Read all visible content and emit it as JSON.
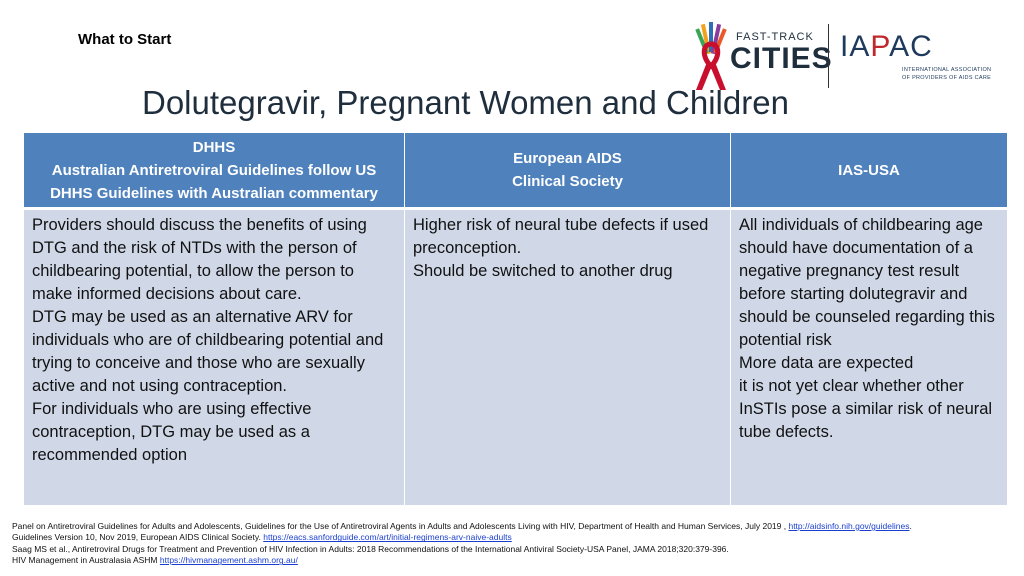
{
  "header": {
    "section_label": "What to Start",
    "title": "Dolutegravir, Pregnant Women and Children"
  },
  "logos": {
    "ftc_line1": "FAST-TRACK",
    "ftc_line2": "CITIES",
    "iapac_prefix": "IA",
    "iapac_mid": "P",
    "iapac_suffix": "AC",
    "iapac_sub1": "INTERNATIONAL ASSOCIATION",
    "iapac_sub2": "OF PROVIDERS OF AIDS CARE"
  },
  "table": {
    "headers": [
      {
        "line1": "DHHS",
        "line2": "Australian Antiretroviral Guidelines follow US",
        "line3": "DHHS Guidelines with Australian commentary"
      },
      {
        "line1": "European AIDS",
        "line2": "Clinical Society"
      },
      {
        "line1": "IAS-USA"
      }
    ],
    "cells": [
      "Providers should discuss the benefits of using DTG and the risk of NTDs with the person of childbearing potential, to allow the person to make informed decisions about care.\nDTG may be used as an alternative ARV for individuals who are of childbearing potential and trying to conceive and those who are sexually active and not using contraception.\nFor individuals who are using effective contraception, DTG may be used as a recommended option",
      "Higher risk of neural tube defects if used preconception.\nShould be switched to another drug",
      "All individuals of childbearing age should have documentation of a negative pregnancy test result before starting dolutegravir and should be counseled regarding this potential risk\nMore data are expected\nit is not yet clear whether other InSTIs pose a similar risk of neural tube defects."
    ]
  },
  "references": {
    "ref1_text": "Panel on Antiretroviral Guidelines for Adults and Adolescents, Guidelines for the Use of Antiretroviral Agents in Adults and Adolescents Living with HIV, Department of Health and Human Services, July 2019 , ",
    "ref1_link": "http://aidsinfo.nih.gov/guidelines",
    "ref1_end": ".",
    "ref2_text": "Guidelines Version 10, Nov 2019, European AIDS Clinical Society. ",
    "ref2_link": "https://eacs.sanfordguide.com/art/initial-regimens-arv-naive-adults",
    "ref3_text": "Saag MS et al., Antiretroviral Drugs for Treatment and Prevention of HIV Infection in Adults: 2018 Recommendations of the International Antiviral Society-USA Panel, JAMA 2018;320:379-396.",
    "ref4_text": "HIV Management in Australasia ASHM ",
    "ref4_link": "https://hivmanagement.ashm.org.au/"
  }
}
